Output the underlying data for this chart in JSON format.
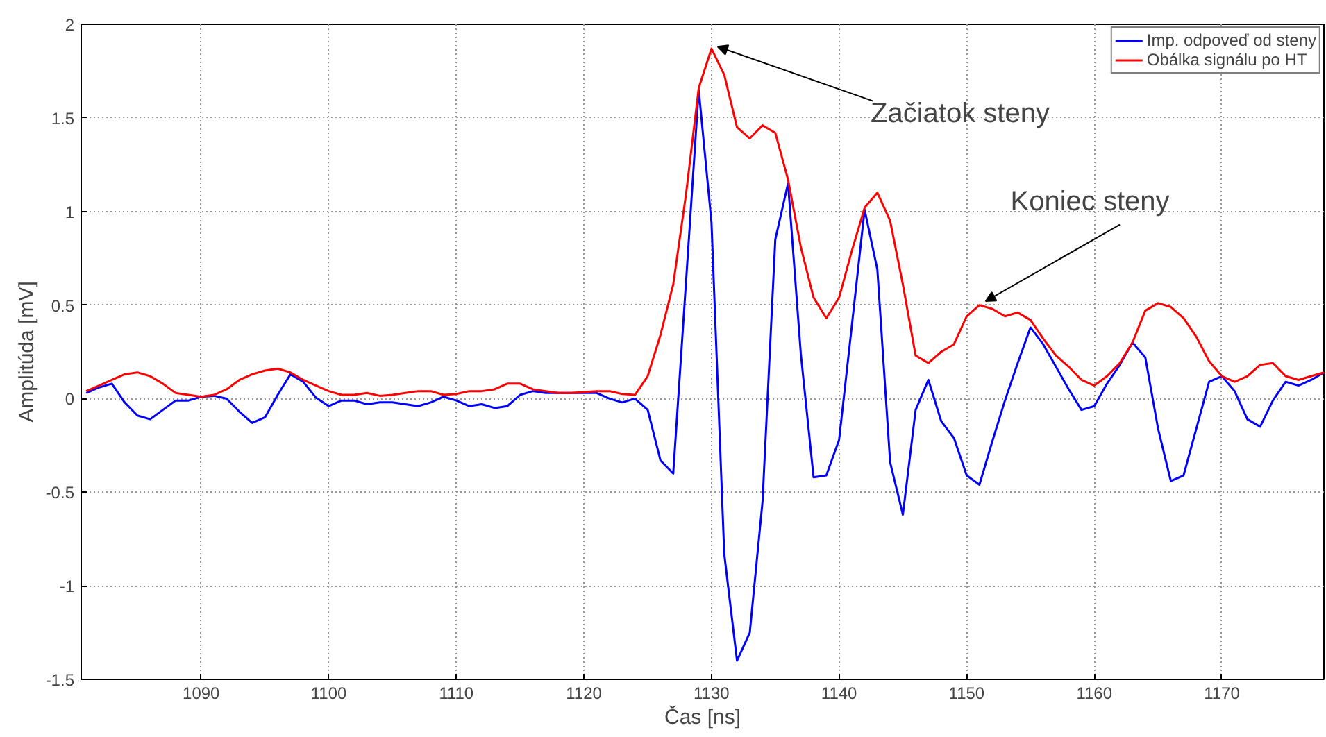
{
  "chart_data": {
    "type": "line",
    "xlabel": "Čas [ns]",
    "ylabel": "Amplitúda [mV]",
    "x": [
      1081,
      1082,
      1083,
      1084,
      1085,
      1086,
      1087,
      1088,
      1089,
      1090,
      1091,
      1092,
      1093,
      1094,
      1095,
      1096,
      1097,
      1098,
      1099,
      1100,
      1101,
      1102,
      1103,
      1104,
      1105,
      1106,
      1107,
      1108,
      1109,
      1110,
      1111,
      1112,
      1113,
      1114,
      1115,
      1116,
      1117,
      1118,
      1119,
      1120,
      1121,
      1122,
      1123,
      1124,
      1125,
      1126,
      1127,
      1128,
      1129,
      1130,
      1131,
      1132,
      1133,
      1134,
      1135,
      1136,
      1137,
      1138,
      1139,
      1140,
      1141,
      1142,
      1143,
      1144,
      1145,
      1146,
      1147,
      1148,
      1149,
      1150,
      1151,
      1152,
      1153,
      1154,
      1155,
      1156,
      1157,
      1158,
      1159,
      1160,
      1161,
      1162,
      1163,
      1164,
      1165,
      1166,
      1167,
      1168,
      1169,
      1170,
      1171,
      1172,
      1173,
      1174,
      1175,
      1176,
      1177,
      1178
    ],
    "series": [
      {
        "name": "Imp. odpoveď od steny",
        "color": "#0000ff",
        "values": [
          0.03,
          0.06,
          0.08,
          -0.02,
          -0.09,
          -0.11,
          -0.06,
          -0.01,
          -0.01,
          0.01,
          0.015,
          0,
          -0.07,
          -0.13,
          -0.1,
          0.02,
          0.13,
          0.09,
          0.005,
          -0.04,
          -0.01,
          -0.01,
          -0.03,
          -0.02,
          -0.02,
          -0.03,
          -0.04,
          -0.02,
          0.01,
          -0.01,
          -0.04,
          -0.03,
          -0.05,
          -0.04,
          0.02,
          0.04,
          0.03,
          0.03,
          0.03,
          0.03,
          0.03,
          0,
          -0.02,
          0,
          -0.06,
          -0.33,
          -0.4,
          0.62,
          1.65,
          0.94,
          -0.83,
          -1.4,
          -1.25,
          -0.55,
          0.85,
          1.15,
          0.24,
          -0.42,
          -0.41,
          -0.22,
          0.39,
          1.01,
          0.69,
          -0.34,
          -0.62,
          -0.06,
          0.1,
          -0.12,
          -0.21,
          -0.41,
          -0.46,
          -0.23,
          -0.01,
          0.19,
          0.38,
          0.29,
          0.17,
          0.05,
          -0.06,
          -0.04,
          0.08,
          0.18,
          0.3,
          0.22,
          -0.16,
          -0.44,
          -0.41,
          -0.16,
          0.09,
          0.12,
          0.04,
          -0.11,
          -0.15,
          -0.01,
          0.09,
          0.07,
          0.1,
          0.14
        ]
      },
      {
        "name": "Obálka signálu po HT",
        "color": "#ff0000",
        "values": [
          0.04,
          0.07,
          0.1,
          0.13,
          0.14,
          0.12,
          0.08,
          0.03,
          0.02,
          0.01,
          0.02,
          0.05,
          0.1,
          0.13,
          0.15,
          0.16,
          0.14,
          0.1,
          0.07,
          0.04,
          0.02,
          0.02,
          0.03,
          0.015,
          0.02,
          0.03,
          0.04,
          0.04,
          0.02,
          0.025,
          0.04,
          0.04,
          0.05,
          0.08,
          0.08,
          0.05,
          0.04,
          0.03,
          0.03,
          0.035,
          0.04,
          0.04,
          0.025,
          0.02,
          0.12,
          0.34,
          0.61,
          1.09,
          1.66,
          1.87,
          1.73,
          1.45,
          1.39,
          1.46,
          1.42,
          1.17,
          0.81,
          0.54,
          0.43,
          0.54,
          0.79,
          1.02,
          1.1,
          0.95,
          0.61,
          0.23,
          0.19,
          0.25,
          0.29,
          0.44,
          0.5,
          0.48,
          0.44,
          0.46,
          0.42,
          0.32,
          0.23,
          0.17,
          0.1,
          0.07,
          0.12,
          0.19,
          0.3,
          0.47,
          0.51,
          0.49,
          0.43,
          0.33,
          0.2,
          0.12,
          0.09,
          0.12,
          0.18,
          0.19,
          0.12,
          0.1,
          0.12,
          0.14
        ]
      }
    ],
    "xlim": [
      1080.6,
      1178
    ],
    "xticks": [
      1090,
      1100,
      1110,
      1120,
      1130,
      1140,
      1150,
      1160,
      1170
    ],
    "ylim": [
      -1.5,
      2
    ],
    "yticks": [
      -1.5,
      -1,
      -0.5,
      0,
      0.5,
      1,
      1.5,
      2
    ],
    "grid": true,
    "legend": "top right",
    "line_style": "solid",
    "marker": "none",
    "annotations": [
      {
        "text": "Začiatok steny",
        "x": 1130,
        "y": 1.87
      },
      {
        "text": "Koniec steny",
        "x": 1151,
        "y": 0.51
      }
    ]
  }
}
